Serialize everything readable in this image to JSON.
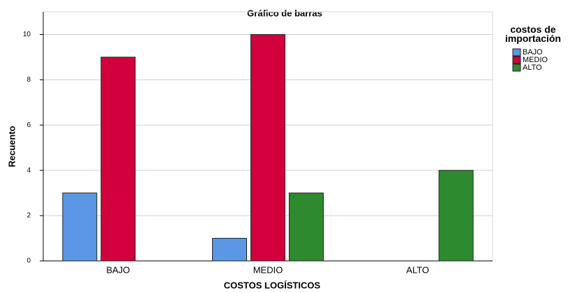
{
  "chart_data": {
    "type": "bar",
    "title": "Gráfico de barras",
    "x_label": "COSTOS LOGÍSTICOS",
    "y_label": "Recuento",
    "categories": [
      "BAJO",
      "MEDIO",
      "ALTO"
    ],
    "legend_title": "costos de importación",
    "series": [
      {
        "name": "BAJO",
        "color": "#5b97e5",
        "values": [
          3,
          1,
          null
        ]
      },
      {
        "name": "MEDIO",
        "color": "#d2003c",
        "values": [
          9,
          10,
          null
        ]
      },
      {
        "name": "ALTO",
        "color": "#2e8a2e",
        "values": [
          null,
          3,
          4
        ]
      }
    ],
    "ylim": [
      0,
      11
    ],
    "yticks": [
      0,
      2,
      4,
      6,
      8,
      10
    ],
    "grid": true,
    "legend": "right"
  }
}
